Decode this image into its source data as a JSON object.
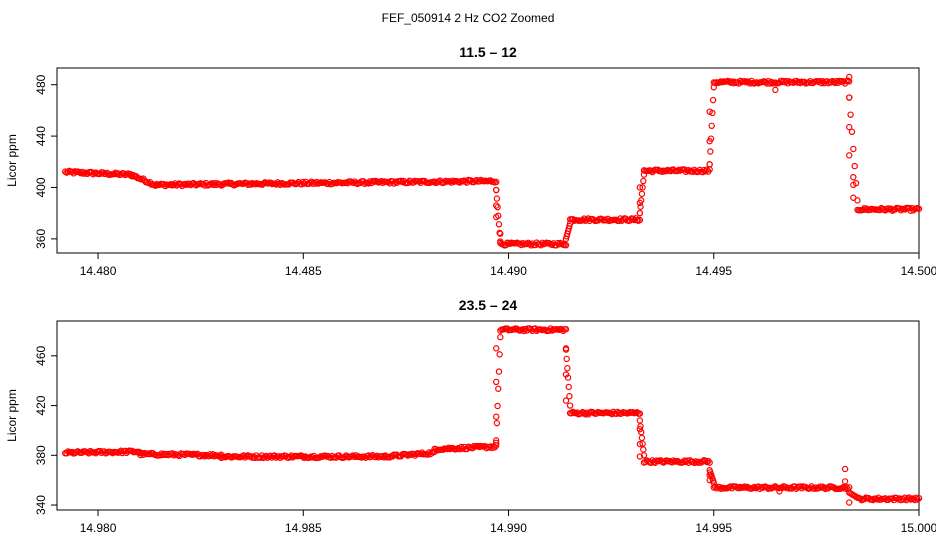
{
  "figure": {
    "title": "FEF_050914  2 Hz CO2 Zoomed"
  },
  "chart_data": [
    {
      "type": "scatter",
      "title": "11.5 – 12",
      "ylabel": "Licor ppm",
      "xlabel": "",
      "xlim": [
        14.479,
        14.5
      ],
      "ylim": [
        349,
        493
      ],
      "xticks": [
        14.48,
        14.485,
        14.49,
        14.495,
        14.5
      ],
      "xtick_labels": [
        "14.480",
        "14.485",
        "14.490",
        "14.495",
        "14.500"
      ],
      "yticks": [
        360,
        400,
        440,
        480
      ],
      "ytick_labels": [
        "360",
        "400",
        "440",
        "480"
      ],
      "marker_color": "#ff0000",
      "grid": false,
      "series": [
        {
          "segments": [
            {
              "x": [
                14.4792,
                14.4808
              ],
              "y": [
                412,
                410
              ]
            },
            {
              "x": [
                14.4808,
                14.4814
              ],
              "y": [
                410,
                402
              ]
            },
            {
              "x": [
                14.4814,
                14.484
              ],
              "y": [
                402,
                403
              ]
            },
            {
              "x": [
                14.484,
                14.4897
              ],
              "y": [
                403,
                405
              ]
            },
            {
              "x": [
                14.4897,
                14.4898
              ],
              "y": [
                398,
                358
              ],
              "style": "transition"
            },
            {
              "x": [
                14.4898,
                14.4914
              ],
              "y": [
                356,
                356
              ]
            },
            {
              "x": [
                14.4914,
                14.4915
              ],
              "y": [
                360,
                372
              ],
              "style": "transition"
            },
            {
              "x": [
                14.4915,
                14.4932
              ],
              "y": [
                375,
                375
              ]
            },
            {
              "x": [
                14.4932,
                14.4933
              ],
              "y": [
                380,
                410
              ],
              "style": "transition"
            },
            {
              "x": [
                14.4933,
                14.4949
              ],
              "y": [
                413,
                413
              ]
            },
            {
              "x": [
                14.4949,
                14.495
              ],
              "y": [
                418,
                478
              ],
              "style": "transition"
            },
            {
              "x": [
                14.495,
                14.4983
              ],
              "y": [
                482,
                482
              ]
            },
            {
              "x": [
                14.4983,
                14.4985
              ],
              "y": [
                470,
                390
              ],
              "style": "transition"
            },
            {
              "x": [
                14.4985,
                14.5
              ],
              "y": [
                383,
                383
              ]
            }
          ],
          "outliers": [
            {
              "x": 14.4897,
              "y": 398
            },
            {
              "x": 14.4897,
              "y": 386
            },
            {
              "x": 14.4897,
              "y": 377
            },
            {
              "x": 14.4898,
              "y": 364
            },
            {
              "x": 14.4932,
              "y": 380
            },
            {
              "x": 14.4932,
              "y": 388
            },
            {
              "x": 14.4932,
              "y": 400
            },
            {
              "x": 14.4949,
              "y": 418
            },
            {
              "x": 14.4949,
              "y": 436
            },
            {
              "x": 14.4949,
              "y": 459
            },
            {
              "x": 14.4965,
              "y": 476
            },
            {
              "x": 14.4983,
              "y": 486
            },
            {
              "x": 14.4983,
              "y": 470
            },
            {
              "x": 14.4983,
              "y": 447
            },
            {
              "x": 14.4983,
              "y": 425
            },
            {
              "x": 14.4984,
              "y": 408
            },
            {
              "x": 14.4984,
              "y": 402
            },
            {
              "x": 14.4984,
              "y": 392
            }
          ]
        }
      ]
    },
    {
      "type": "scatter",
      "title": "23.5 – 24",
      "ylabel": "Licor ppm",
      "xlabel": "",
      "xlim": [
        14.979,
        15.0
      ],
      "ylim": [
        336,
        488
      ],
      "xticks": [
        14.98,
        14.985,
        14.99,
        14.995,
        15.0
      ],
      "xtick_labels": [
        "14.980",
        "14.985",
        "14.990",
        "14.995",
        "15.000"
      ],
      "yticks": [
        340,
        380,
        420,
        460
      ],
      "ytick_labels": [
        "340",
        "380",
        "420",
        "460"
      ],
      "marker_color": "#ff0000",
      "grid": false,
      "series": [
        {
          "segments": [
            {
              "x": [
                14.9792,
                14.981
              ],
              "y": [
                382,
                383
              ]
            },
            {
              "x": [
                14.981,
                14.983
              ],
              "y": [
                381,
                380
              ]
            },
            {
              "x": [
                14.983,
                14.987
              ],
              "y": [
                379,
                379
              ]
            },
            {
              "x": [
                14.987,
                14.9882
              ],
              "y": [
                379,
                382
              ]
            },
            {
              "x": [
                14.9882,
                14.9897
              ],
              "y": [
                385,
                387
              ]
            },
            {
              "x": [
                14.9897,
                14.9898
              ],
              "y": [
                392,
                475
              ],
              "style": "transition"
            },
            {
              "x": [
                14.9898,
                14.9914
              ],
              "y": [
                481,
                481
              ]
            },
            {
              "x": [
                14.9914,
                14.9915
              ],
              "y": [
                465,
                420
              ],
              "style": "transition"
            },
            {
              "x": [
                14.9915,
                14.9932
              ],
              "y": [
                414,
                414
              ]
            },
            {
              "x": [
                14.9932,
                14.9933
              ],
              "y": [
                408,
                380
              ],
              "style": "transition"
            },
            {
              "x": [
                14.9933,
                14.9949
              ],
              "y": [
                375,
                375
              ]
            },
            {
              "x": [
                14.9949,
                14.995
              ],
              "y": [
                368,
                358
              ],
              "style": "transition"
            },
            {
              "x": [
                14.995,
                14.9983
              ],
              "y": [
                354,
                354
              ]
            },
            {
              "x": [
                14.9983,
                14.9985
              ],
              "y": [
                350,
                346
              ],
              "style": "transition"
            },
            {
              "x": [
                14.9985,
                15.0
              ],
              "y": [
                345,
                345
              ]
            }
          ],
          "outliers": [
            {
              "x": 14.9897,
              "y": 390
            },
            {
              "x": 14.9897,
              "y": 411
            },
            {
              "x": 14.9897,
              "y": 439
            },
            {
              "x": 14.9897,
              "y": 466
            },
            {
              "x": 14.9914,
              "y": 466
            },
            {
              "x": 14.9914,
              "y": 445
            },
            {
              "x": 14.9914,
              "y": 424
            },
            {
              "x": 14.9932,
              "y": 401
            },
            {
              "x": 14.9932,
              "y": 389
            },
            {
              "x": 14.9932,
              "y": 379
            },
            {
              "x": 14.9949,
              "y": 364
            },
            {
              "x": 14.9949,
              "y": 360
            },
            {
              "x": 14.9966,
              "y": 351
            },
            {
              "x": 14.9982,
              "y": 369
            },
            {
              "x": 14.9982,
              "y": 359
            },
            {
              "x": 14.9983,
              "y": 342
            }
          ]
        }
      ]
    }
  ]
}
